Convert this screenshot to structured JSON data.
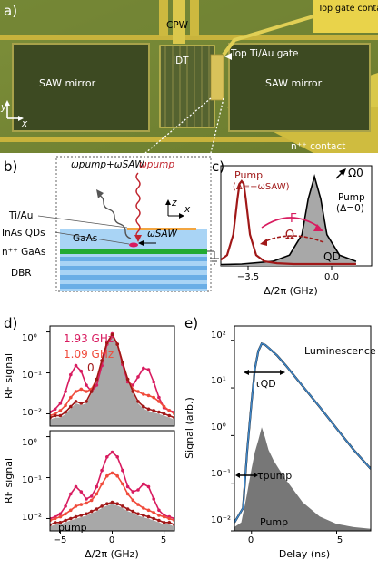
{
  "panels": {
    "a": {
      "letter": "a)",
      "labels": {
        "cpw": "CPW",
        "top_gate_contact": "Top gate contact",
        "idt": "IDT",
        "top_gate": "Top Ti/Au gate",
        "saw_mirror_left": "SAW mirror",
        "saw_mirror_right": "SAW mirror",
        "n_contact": "n⁺⁺ contact",
        "axis_y": "y",
        "axis_x": "x"
      }
    },
    "b": {
      "letter": "b)",
      "layers": {
        "tiau": "Ti/Au",
        "qds": "InAs QDs",
        "gaas_label_inside": "GaAs",
        "n_gaas": "n⁺⁺ GaAs",
        "dbr": "DBR"
      },
      "photons": {
        "out": "ωpump+ωSAW",
        "in": "ωpump",
        "saw": "ωSAW"
      },
      "axes": {
        "z": "z",
        "x": "x"
      }
    },
    "c": {
      "letter": "c)",
      "pump_detuned": "Pump",
      "pump_detuned_cond": "(Δ=−ωSAW)",
      "gamma": "Γ",
      "omega": "Ω",
      "omega0": "Ω0",
      "pump_resonant": "Pump",
      "pump_resonant_cond": "(Δ=0)",
      "qd": "QD",
      "xlabel": "Δ/2π (GHz)",
      "xticks": [
        "−3.5",
        "0.0"
      ]
    },
    "d": {
      "letter": "d)",
      "ylabel_top": "RF signal",
      "ylabel_bottom": "RF signal",
      "legend": [
        "1.93 GHz",
        "1.09 GHz",
        "0"
      ],
      "pump_label": "pump",
      "xlabel": "Δ/2π (GHz)",
      "yticks": [
        "10⁰",
        "10⁻¹",
        "10⁻²"
      ],
      "xticks": [
        "−5",
        "0",
        "5"
      ]
    },
    "e": {
      "letter": "e)",
      "ylabel": "Signal (arb.)",
      "xlabel": "Delay (ns)",
      "luminescence": "Luminescence",
      "tau_qd": "τQD",
      "tau_pump": "τpump",
      "pump_label": "Pump",
      "yticks": [
        "10²",
        "10¹",
        "10⁰",
        "10⁻¹",
        "10⁻²"
      ],
      "xticks": [
        "0",
        "5"
      ]
    }
  },
  "colors": {
    "dark_red": "#a01818",
    "pink": "#d81b5f",
    "orange": "#f04a3a",
    "blue": "#3f86c8",
    "gray_fill": "#a8a8a8",
    "gaas_blue": "#a9d4f5",
    "dbr_blue": "#6aaee6",
    "green_layer": "#22aa33",
    "tiau_orange": "#f2a540"
  },
  "chart_data": [
    {
      "panel": "c",
      "type": "line",
      "xlabel": "Δ/2π (GHz)",
      "xticks": [
        -3.5,
        0.0
      ],
      "series": [
        {
          "name": "Pump (Δ=−ωSAW)",
          "x": [
            -5.2,
            -4.6,
            -4.2,
            -3.9,
            -3.7,
            -3.6,
            -3.5,
            -3.4,
            -3.3,
            -3.1,
            -2.8,
            -2.4,
            -1.8,
            -1.0,
            0.0,
            1.0,
            2.0
          ],
          "values": [
            0.02,
            0.05,
            0.12,
            0.35,
            0.75,
            0.92,
            0.95,
            0.92,
            0.75,
            0.35,
            0.12,
            0.05,
            0.03,
            0.02,
            0.02,
            0.02,
            0.02
          ]
        },
        {
          "name": "QD",
          "x": [
            -5.2,
            -3.5,
            -2.0,
            -1.2,
            -0.6,
            -0.3,
            0.0,
            0.3,
            0.6,
            1.2,
            2.0
          ],
          "values": [
            0.01,
            0.02,
            0.05,
            0.12,
            0.35,
            0.75,
            1.0,
            0.75,
            0.35,
            0.12,
            0.05
          ]
        }
      ]
    },
    {
      "panel": "d-top",
      "type": "line",
      "yscale": "log",
      "ylim": [
        0.005,
        1.4
      ],
      "xlim": [
        -6,
        6
      ],
      "ylabel": "RF signal",
      "x": [
        -6,
        -5.5,
        -5,
        -4.5,
        -4,
        -3.5,
        -3,
        -2.5,
        -2,
        -1.5,
        -1,
        -0.5,
        0,
        0.5,
        1,
        1.5,
        2,
        2.5,
        3,
        3.5,
        4,
        4.5,
        5,
        5.5,
        6
      ],
      "series": [
        {
          "name": "1.93 GHz",
          "values": [
            0.011,
            0.013,
            0.018,
            0.035,
            0.09,
            0.15,
            0.11,
            0.05,
            0.035,
            0.05,
            0.15,
            0.5,
            0.9,
            0.5,
            0.16,
            0.06,
            0.05,
            0.08,
            0.13,
            0.12,
            0.06,
            0.025,
            0.014,
            0.012,
            0.011
          ]
        },
        {
          "name": "1.09 GHz",
          "values": [
            0.009,
            0.01,
            0.012,
            0.016,
            0.025,
            0.035,
            0.04,
            0.035,
            0.04,
            0.07,
            0.2,
            0.55,
            0.85,
            0.5,
            0.18,
            0.07,
            0.04,
            0.035,
            0.03,
            0.028,
            0.025,
            0.02,
            0.015,
            0.012,
            0.01
          ]
        },
        {
          "name": "0",
          "values": [
            0.008,
            0.009,
            0.009,
            0.011,
            0.015,
            0.02,
            0.018,
            0.02,
            0.035,
            0.07,
            0.2,
            0.55,
            0.85,
            0.5,
            0.18,
            0.07,
            0.035,
            0.02,
            0.015,
            0.013,
            0.012,
            0.011,
            0.01,
            0.009,
            0.008
          ]
        }
      ]
    },
    {
      "panel": "d-bottom",
      "type": "line",
      "yscale": "log",
      "ylim": [
        0.005,
        1.4
      ],
      "xlim": [
        -6,
        6
      ],
      "ylabel": "RF signal",
      "xlabel": "Δ/2π (GHz)",
      "x": [
        -6,
        -5.5,
        -5,
        -4.5,
        -4,
        -3.5,
        -3,
        -2.5,
        -2,
        -1.5,
        -1,
        -0.5,
        0,
        0.5,
        1,
        1.5,
        2,
        2.5,
        3,
        3.5,
        4,
        4.5,
        5,
        5.5,
        6
      ],
      "series": [
        {
          "name": "1.93 GHz",
          "values": [
            0.01,
            0.011,
            0.013,
            0.02,
            0.04,
            0.06,
            0.045,
            0.03,
            0.035,
            0.06,
            0.15,
            0.32,
            0.42,
            0.32,
            0.15,
            0.06,
            0.045,
            0.05,
            0.07,
            0.06,
            0.03,
            0.016,
            0.012,
            0.011,
            0.01
          ]
        },
        {
          "name": "1.09 GHz",
          "values": [
            0.009,
            0.01,
            0.011,
            0.013,
            0.016,
            0.02,
            0.022,
            0.024,
            0.028,
            0.04,
            0.07,
            0.11,
            0.13,
            0.11,
            0.07,
            0.04,
            0.028,
            0.022,
            0.018,
            0.016,
            0.014,
            0.012,
            0.011,
            0.01,
            0.009
          ]
        },
        {
          "name": "0",
          "values": [
            0.007,
            0.008,
            0.008,
            0.009,
            0.01,
            0.011,
            0.012,
            0.013,
            0.015,
            0.017,
            0.02,
            0.023,
            0.025,
            0.023,
            0.02,
            0.017,
            0.015,
            0.013,
            0.012,
            0.011,
            0.01,
            0.009,
            0.008,
            0.008,
            0.007
          ]
        }
      ]
    },
    {
      "panel": "e",
      "type": "line",
      "yscale": "log",
      "ylim": [
        0.01,
        200
      ],
      "xlim": [
        -1,
        7
      ],
      "xlabel": "Delay (ns)",
      "ylabel": "Signal (arb.)",
      "series": [
        {
          "name": "Luminescence",
          "x": [
            -1,
            -0.5,
            -0.25,
            0,
            0.2,
            0.4,
            0.6,
            0.8,
            1.0,
            1.5,
            2,
            3,
            4,
            5,
            6,
            7
          ],
          "values": [
            0.015,
            0.03,
            0.5,
            5,
            25,
            60,
            85,
            80,
            70,
            48,
            30,
            11,
            4,
            1.4,
            0.5,
            0.2
          ]
        },
        {
          "name": "Pump",
          "x": [
            -1,
            -0.6,
            -0.3,
            0,
            0.2,
            0.4,
            0.6,
            0.8,
            1.0,
            1.3,
            1.6,
            2,
            2.5,
            3,
            4,
            5,
            6,
            7
          ],
          "values": [
            0.012,
            0.015,
            0.05,
            0.2,
            0.45,
            0.8,
            1.5,
            0.9,
            0.5,
            0.3,
            0.2,
            0.12,
            0.07,
            0.04,
            0.02,
            0.014,
            0.012,
            0.011
          ]
        }
      ]
    }
  ]
}
